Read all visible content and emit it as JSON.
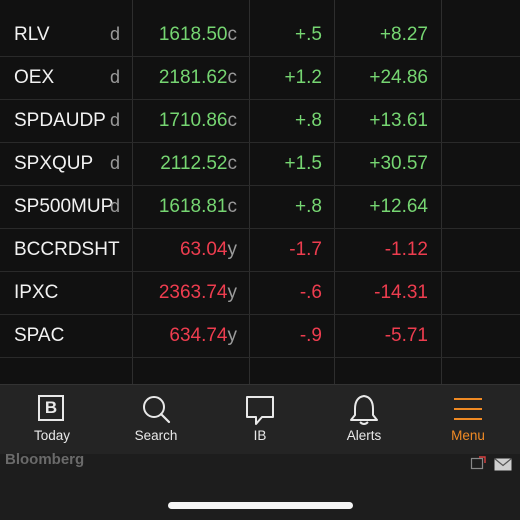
{
  "quotes": [
    {
      "symbol": "RLV",
      "flag": "d",
      "price": "1618.50",
      "price_suffix": "c",
      "change": "+.5",
      "change_pct": "+8.27",
      "dir": "up"
    },
    {
      "symbol": "OEX",
      "flag": "d",
      "price": "2181.62",
      "price_suffix": "c",
      "change": "+1.2",
      "change_pct": "+24.86",
      "dir": "up"
    },
    {
      "symbol": "SPDAUDP",
      "flag": "d",
      "price": "1710.86",
      "price_suffix": "c",
      "change": "+.8",
      "change_pct": "+13.61",
      "dir": "up"
    },
    {
      "symbol": "SPXQUP",
      "flag": "d",
      "price": "2112.52",
      "price_suffix": "c",
      "change": "+1.5",
      "change_pct": "+30.57",
      "dir": "up"
    },
    {
      "symbol": "SP500MUP",
      "flag": "d",
      "price": "1618.81",
      "price_suffix": "c",
      "change": "+.8",
      "change_pct": "+12.64",
      "dir": "up"
    },
    {
      "symbol": "BCCRDSHT",
      "flag": "",
      "price": "63.04",
      "price_suffix": "y",
      "change": "-1.7",
      "change_pct": "-1.12",
      "dir": "down"
    },
    {
      "symbol": "IPXC",
      "flag": "",
      "price": "2363.74",
      "price_suffix": "y",
      "change": "-.6",
      "change_pct": "-14.31",
      "dir": "down"
    },
    {
      "symbol": "SPAC",
      "flag": "",
      "price": "634.74",
      "price_suffix": "y",
      "change": "-.9",
      "change_pct": "-5.71",
      "dir": "down"
    }
  ],
  "tabs": [
    {
      "label": "Today",
      "icon": "bloomberg-b-icon"
    },
    {
      "label": "Search",
      "icon": "search-icon"
    },
    {
      "label": "IB",
      "icon": "chat-bubble-icon"
    },
    {
      "label": "Alerts",
      "icon": "bell-icon"
    },
    {
      "label": "Menu",
      "icon": "hamburger-menu-icon",
      "active": true
    }
  ],
  "today_icon_glyph": "B",
  "footer": {
    "brand": "Bloomberg",
    "icons": [
      "ad-choices-icon",
      "mail-icon"
    ]
  },
  "colors": {
    "up": "#76d672",
    "down": "#ee3d4f",
    "active_tab": "#f08a24",
    "background": "#111111"
  }
}
